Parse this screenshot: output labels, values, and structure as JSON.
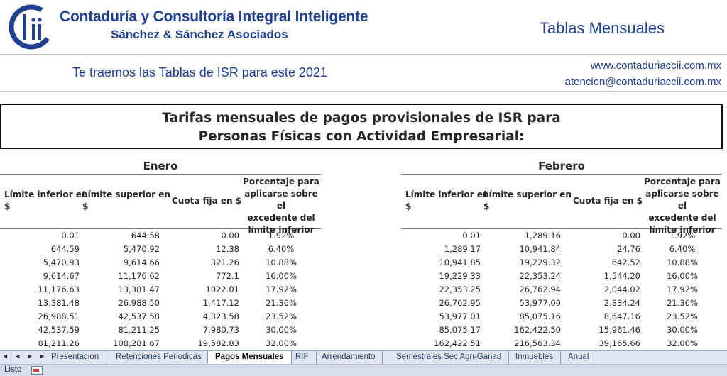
{
  "header": {
    "company_line1": "Contaduría y Consultoría Integral Inteligente",
    "company_line2": "Sánchez & Sánchez Asociados",
    "section_title": "Tablas Mensuales",
    "tagline": "Te traemos las Tablas de ISR para este 2021",
    "website": "www.contaduriaccii.com.mx",
    "email": "atencion@contaduriaccii.com.mx",
    "brand_color": "#1f3f8f"
  },
  "title": {
    "line1": "Tarifas mensuales de pagos provisionales de ISR para",
    "line2": "Personas Físicas con Actividad Empresarial:"
  },
  "columns": {
    "lower_l1": "Límite inferior en",
    "lower_l2": "$",
    "upper_l1": "Límite superior en",
    "upper_l2": "$",
    "fixed": "Cuota fija en $",
    "pct_l1": "Porcentaje para",
    "pct_l2": "aplicarse sobre el",
    "pct_l3": "excedente del",
    "pct_l4": "límite inferior"
  },
  "tables": [
    {
      "month": "Enero",
      "rows": [
        [
          "0.01",
          "644.58",
          "0.00",
          "1.92%"
        ],
        [
          "644.59",
          "5,470.92",
          "12.38",
          "6.40%"
        ],
        [
          "5,470.93",
          "9,614.66",
          "321.26",
          "10.88%"
        ],
        [
          "9,614.67",
          "11,176.62",
          "772.1",
          "16.00%"
        ],
        [
          "11,176.63",
          "13,381.47",
          "1022.01",
          "17.92%"
        ],
        [
          "13,381.48",
          "26,988.50",
          "1,417.12",
          "21.36%"
        ],
        [
          "26,988.51",
          "42,537.58",
          "4,323.58",
          "23.52%"
        ],
        [
          "42,537.59",
          "81,211.25",
          "7,980.73",
          "30.00%"
        ],
        [
          "81,211.26",
          "108,281.67",
          "19,582.83",
          "32.00%"
        ]
      ]
    },
    {
      "month": "Febrero",
      "rows": [
        [
          "0.01",
          "1,289.16",
          "0.00",
          "1.92%"
        ],
        [
          "1,289.17",
          "10,941.84",
          "24.76",
          "6.40%"
        ],
        [
          "10,941.85",
          "19,229.32",
          "642.52",
          "10.88%"
        ],
        [
          "19,229.33",
          "22,353.24",
          "1,544.20",
          "16.00%"
        ],
        [
          "22,353.25",
          "26,762.94",
          "2,044.02",
          "17.92%"
        ],
        [
          "26,762.95",
          "53,977.00",
          "2,834.24",
          "21.36%"
        ],
        [
          "53,977.01",
          "85,075.16",
          "8,647.16",
          "23.52%"
        ],
        [
          "85,075.17",
          "162,422.50",
          "15,961.46",
          "30.00%"
        ],
        [
          "162,422.51",
          "216,563.34",
          "39,165.66",
          "32.00%"
        ]
      ]
    }
  ],
  "sheet_tabs": [
    "Presentación",
    "Retenciones Periódicas",
    "Pagos Mensuales",
    "RIF",
    "Arrendamiento",
    "Semestrales Sec Agri-Ganad",
    "Inmuebles",
    "Anual"
  ],
  "active_tab": "Pagos Mensuales",
  "tab_nav_glyphs": "◄ ◄ ► ►",
  "status": "Listo"
}
